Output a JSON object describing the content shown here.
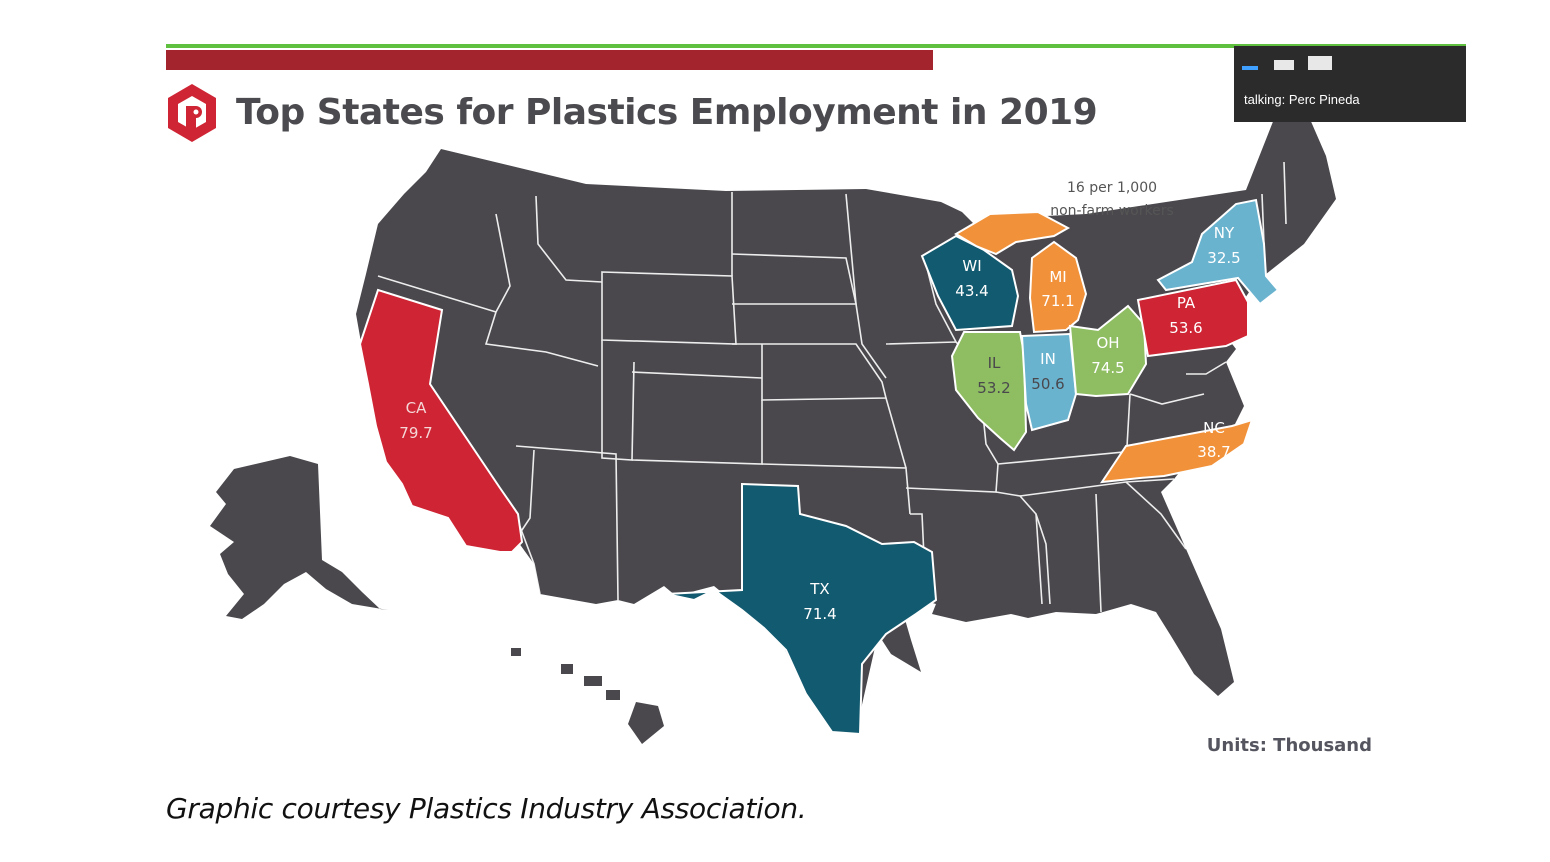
{
  "slide": {
    "title": "Top States for Plastics Employment in 2019",
    "note_line1": "16 per 1,000",
    "note_line2": "non-farm workers",
    "units": "Units: Thousand"
  },
  "call_overlay": {
    "talking_label": "talking:",
    "speaker": "Perc Pineda"
  },
  "caption": "Graphic courtesy Plastics Industry Association.",
  "colors": {
    "base_state": "#4a484d",
    "state_border": "#ffffff",
    "red": "#cf2433",
    "teal": "#125a6f",
    "light_blue": "#6ab3cf",
    "green": "#8ebd62",
    "orange": "#f1923a",
    "brand_red": "#a4242e",
    "accent_green": "#5fbf3f"
  },
  "states": [
    {
      "abbr": "CA",
      "value": "79.7",
      "color": "red"
    },
    {
      "abbr": "OH",
      "value": "74.5",
      "color": "green"
    },
    {
      "abbr": "TX",
      "value": "71.4",
      "color": "teal"
    },
    {
      "abbr": "MI",
      "value": "71.1",
      "color": "orange"
    },
    {
      "abbr": "PA",
      "value": "53.6",
      "color": "red"
    },
    {
      "abbr": "IL",
      "value": "53.2",
      "color": "green"
    },
    {
      "abbr": "IN",
      "value": "50.6",
      "color": "light_blue"
    },
    {
      "abbr": "WI",
      "value": "43.4",
      "color": "teal"
    },
    {
      "abbr": "NC",
      "value": "38.7",
      "color": "orange"
    },
    {
      "abbr": "NY",
      "value": "32.5",
      "color": "light_blue"
    }
  ]
}
